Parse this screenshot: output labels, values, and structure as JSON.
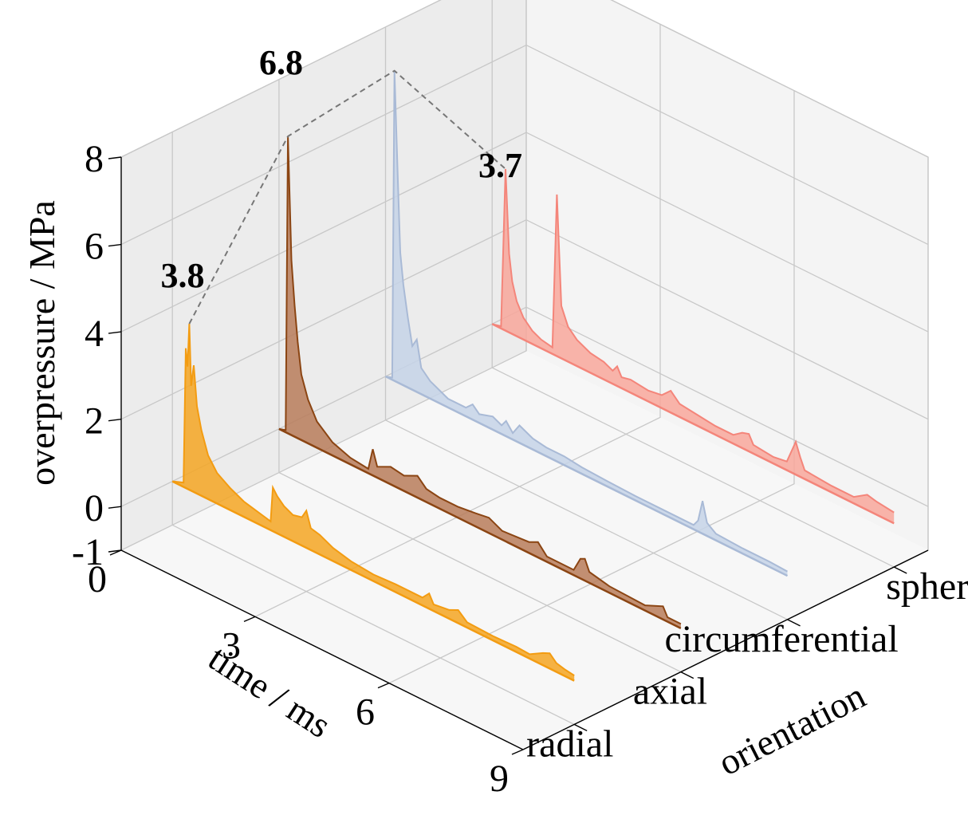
{
  "chart_data": {
    "type": "area",
    "projection": "3d",
    "x_axis": {
      "label": "time / ms",
      "ticks": [
        0,
        3,
        6,
        9
      ],
      "range": [
        0,
        9
      ]
    },
    "y_axis": {
      "label": "orientation",
      "categories": [
        "radial",
        "axial",
        "circumferential",
        "sphere"
      ]
    },
    "z_axis": {
      "label": "overpressure / MPa",
      "ticks": [
        -1,
        0,
        2,
        4,
        6,
        8
      ],
      "range": [
        -1,
        8
      ]
    },
    "grid": true,
    "series": [
      {
        "name": "radial",
        "color": "#f5a623",
        "edge_color": "#f39c12",
        "peak": 3.8,
        "points": [
          [
            0,
            0
          ],
          [
            0.25,
            0.1
          ],
          [
            0.3,
            3.2
          ],
          [
            0.34,
            2.8
          ],
          [
            0.38,
            3.8
          ],
          [
            0.42,
            2.4
          ],
          [
            0.48,
            2.9
          ],
          [
            0.55,
            2.0
          ],
          [
            0.65,
            1.5
          ],
          [
            0.8,
            1.0
          ],
          [
            1.0,
            0.7
          ],
          [
            1.3,
            0.5
          ],
          [
            1.6,
            0.35
          ],
          [
            2.0,
            0.25
          ],
          [
            2.2,
            0.2
          ],
          [
            2.25,
            1.0
          ],
          [
            2.35,
            0.85
          ],
          [
            2.5,
            0.7
          ],
          [
            2.7,
            0.6
          ],
          [
            2.9,
            0.65
          ],
          [
            3.0,
            0.85
          ],
          [
            3.1,
            0.5
          ],
          [
            3.3,
            0.45
          ],
          [
            3.6,
            0.3
          ],
          [
            4.0,
            0.2
          ],
          [
            4.5,
            0.15
          ],
          [
            5.0,
            0.18
          ],
          [
            5.6,
            0.18
          ],
          [
            5.75,
            0.35
          ],
          [
            5.85,
            0.15
          ],
          [
            6.2,
            0.2
          ],
          [
            6.4,
            0.3
          ],
          [
            6.6,
            0.12
          ],
          [
            7.2,
            0.1
          ],
          [
            7.7,
            0.12
          ],
          [
            8.0,
            0.1
          ],
          [
            8.3,
            0.28
          ],
          [
            8.45,
            0.35
          ],
          [
            8.6,
            0.2
          ],
          [
            8.8,
            0.15
          ],
          [
            9.0,
            0.12
          ]
        ]
      },
      {
        "name": "axial",
        "color": "#b97c5a",
        "edge_color": "#8b4513",
        "peak": 6.8,
        "points": [
          [
            0,
            0
          ],
          [
            0.15,
            0.05
          ],
          [
            0.2,
            6.8
          ],
          [
            0.28,
            4.0
          ],
          [
            0.35,
            3.0
          ],
          [
            0.42,
            2.2
          ],
          [
            0.5,
            1.5
          ],
          [
            0.65,
            1.0
          ],
          [
            0.85,
            0.6
          ],
          [
            1.2,
            0.3
          ],
          [
            1.6,
            0.15
          ],
          [
            2.0,
            0.1
          ],
          [
            2.1,
            0.6
          ],
          [
            2.2,
            0.25
          ],
          [
            2.5,
            0.4
          ],
          [
            2.8,
            0.35
          ],
          [
            3.1,
            0.5
          ],
          [
            3.3,
            0.3
          ],
          [
            3.6,
            0.25
          ],
          [
            4.0,
            0.25
          ],
          [
            4.4,
            0.3
          ],
          [
            4.7,
            0.35
          ],
          [
            5.0,
            0.2
          ],
          [
            5.6,
            0.25
          ],
          [
            5.8,
            0.35
          ],
          [
            6.0,
            0.12
          ],
          [
            6.6,
            0.12
          ],
          [
            6.75,
            0.45
          ],
          [
            6.85,
            0.5
          ],
          [
            6.95,
            0.25
          ],
          [
            7.4,
            0.15
          ],
          [
            8.2,
            0.12
          ],
          [
            8.6,
            0.3
          ],
          [
            8.7,
            0.1
          ],
          [
            9.0,
            0.1
          ]
        ]
      },
      {
        "name": "circumferential",
        "color": "#c6d3e8",
        "edge_color": "#a9bad6",
        "peak": 7.1,
        "points": [
          [
            0,
            0
          ],
          [
            0.15,
            0.05
          ],
          [
            0.2,
            7.1
          ],
          [
            0.28,
            4.5
          ],
          [
            0.33,
            3.0
          ],
          [
            0.4,
            2.3
          ],
          [
            0.5,
            1.6
          ],
          [
            0.6,
            1.0
          ],
          [
            0.7,
            1.2
          ],
          [
            0.8,
            0.6
          ],
          [
            1.0,
            0.4
          ],
          [
            1.4,
            0.2
          ],
          [
            1.8,
            0.2
          ],
          [
            1.95,
            0.35
          ],
          [
            2.1,
            0.2
          ],
          [
            2.4,
            0.3
          ],
          [
            2.6,
            0.2
          ],
          [
            2.7,
            0.35
          ],
          [
            2.85,
            0.15
          ],
          [
            3.0,
            0.4
          ],
          [
            3.3,
            0.25
          ],
          [
            3.6,
            0.2
          ],
          [
            4.0,
            0.2
          ],
          [
            4.4,
            0.15
          ],
          [
            5.0,
            0.12
          ],
          [
            5.6,
            0.1
          ],
          [
            6.2,
            0.1
          ],
          [
            6.9,
            0.1
          ],
          [
            7.0,
            0.25
          ],
          [
            7.1,
            0.75
          ],
          [
            7.2,
            0.3
          ],
          [
            7.4,
            0.15
          ],
          [
            8.0,
            0.12
          ],
          [
            8.6,
            0.12
          ],
          [
            9.0,
            0.1
          ]
        ]
      },
      {
        "name": "sphere",
        "color": "#f8a79b",
        "edge_color": "#f4857a",
        "peak": 3.7,
        "points": [
          [
            0,
            0
          ],
          [
            0.2,
            0.05
          ],
          [
            0.3,
            3.7
          ],
          [
            0.38,
            1.8
          ],
          [
            0.45,
            1.2
          ],
          [
            0.55,
            0.8
          ],
          [
            0.7,
            0.5
          ],
          [
            0.9,
            0.3
          ],
          [
            1.1,
            0.2
          ],
          [
            1.35,
            0.15
          ],
          [
            1.45,
            3.7
          ],
          [
            1.55,
            1.2
          ],
          [
            1.7,
            0.8
          ],
          [
            1.9,
            0.6
          ],
          [
            2.2,
            0.45
          ],
          [
            2.5,
            0.4
          ],
          [
            2.7,
            0.3
          ],
          [
            2.8,
            0.45
          ],
          [
            2.9,
            0.25
          ],
          [
            3.1,
            0.3
          ],
          [
            3.5,
            0.25
          ],
          [
            3.8,
            0.3
          ],
          [
            4.0,
            0.5
          ],
          [
            4.2,
            0.3
          ],
          [
            4.6,
            0.25
          ],
          [
            5.0,
            0.2
          ],
          [
            5.4,
            0.2
          ],
          [
            5.6,
            0.35
          ],
          [
            5.75,
            0.4
          ],
          [
            5.85,
            0.2
          ],
          [
            6.3,
            0.15
          ],
          [
            6.6,
            0.2
          ],
          [
            6.8,
            0.75
          ],
          [
            6.9,
            0.45
          ],
          [
            7.0,
            0.2
          ],
          [
            7.6,
            0.15
          ],
          [
            8.1,
            0.15
          ],
          [
            8.4,
            0.35
          ],
          [
            8.6,
            0.3
          ],
          [
            9.0,
            0.25
          ]
        ]
      }
    ]
  }
}
